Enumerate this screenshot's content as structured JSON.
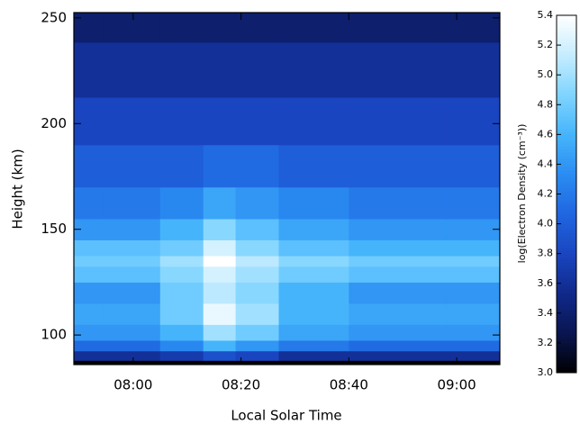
{
  "chart_data": {
    "type": "contour",
    "x_label": "Local Solar Time",
    "y_label": "Height (km)",
    "colorbar_label": "log(Electron Density (cm⁻³))",
    "x": [
      469,
      480,
      490,
      496,
      502,
      512,
      528,
      548
    ],
    "y": [
      86,
      90,
      95,
      100,
      110,
      120,
      130,
      135,
      140,
      150,
      160,
      180,
      200,
      225,
      252
    ],
    "z": [
      [
        3.0,
        3.0,
        3.0,
        3.0,
        3.0,
        3.0,
        3.0,
        3.0
      ],
      [
        3.6,
        3.6,
        3.7,
        3.9,
        3.8,
        3.6,
        3.6,
        3.6
      ],
      [
        4.1,
        4.1,
        4.3,
        4.6,
        4.4,
        4.2,
        4.1,
        4.1
      ],
      [
        4.4,
        4.4,
        4.6,
        5.0,
        4.8,
        4.5,
        4.4,
        4.4
      ],
      [
        4.5,
        4.5,
        4.8,
        5.3,
        5.0,
        4.6,
        4.5,
        4.5
      ],
      [
        4.4,
        4.4,
        4.8,
        5.1,
        4.9,
        4.6,
        4.4,
        4.4
      ],
      [
        4.7,
        4.7,
        4.9,
        5.2,
        5.0,
        4.8,
        4.7,
        4.7
      ],
      [
        4.8,
        4.8,
        5.0,
        5.4,
        5.1,
        4.9,
        4.8,
        4.8
      ],
      [
        4.7,
        4.7,
        4.8,
        5.2,
        4.9,
        4.7,
        4.6,
        4.6
      ],
      [
        4.4,
        4.4,
        4.6,
        4.9,
        4.7,
        4.5,
        4.4,
        4.4
      ],
      [
        4.2,
        4.2,
        4.3,
        4.5,
        4.4,
        4.3,
        4.2,
        4.2
      ],
      [
        4.0,
        4.0,
        4.0,
        4.1,
        4.1,
        4.0,
        4.0,
        4.0
      ],
      [
        3.8,
        3.8,
        3.8,
        3.8,
        3.8,
        3.8,
        3.8,
        3.8
      ],
      [
        3.6,
        3.6,
        3.6,
        3.6,
        3.6,
        3.6,
        3.6,
        3.6
      ],
      [
        3.4,
        3.4,
        3.4,
        3.4,
        3.4,
        3.4,
        3.4,
        3.4
      ]
    ],
    "xlim": [
      469,
      548
    ],
    "ylim": [
      86,
      252.5
    ],
    "xticks": [
      {
        "value": 480,
        "label": "08:00"
      },
      {
        "value": 500,
        "label": "08:20"
      },
      {
        "value": 520,
        "label": "08:40"
      },
      {
        "value": 540,
        "label": "09:00"
      }
    ],
    "yticks": [
      100,
      150,
      200,
      250
    ],
    "clim": [
      3.0,
      5.4
    ],
    "colorbar_ticks": [
      {
        "value": 3.0,
        "label": "3.0"
      },
      {
        "value": 3.2,
        "label": "3.2"
      },
      {
        "value": 3.4,
        "label": "3.4"
      },
      {
        "value": 3.6,
        "label": "3.6"
      },
      {
        "value": 3.8,
        "label": "3.8"
      },
      {
        "value": 4.0,
        "label": "4.0"
      },
      {
        "value": 4.2,
        "label": "4.2"
      },
      {
        "value": 4.4,
        "label": "4.4"
      },
      {
        "value": 4.6,
        "label": "4.6"
      },
      {
        "value": 4.8,
        "label": "4.8"
      },
      {
        "value": 5.0,
        "label": "5.0"
      },
      {
        "value": 5.2,
        "label": "5.2"
      },
      {
        "value": 5.4,
        "label": "5.4"
      }
    ],
    "colormap": [
      "#000000",
      "#0a1550",
      "#10298a",
      "#1a45c0",
      "#2066e0",
      "#2a8cf2",
      "#45b4fb",
      "#7fd4ff",
      "#c5ecff",
      "#ffffff"
    ]
  }
}
